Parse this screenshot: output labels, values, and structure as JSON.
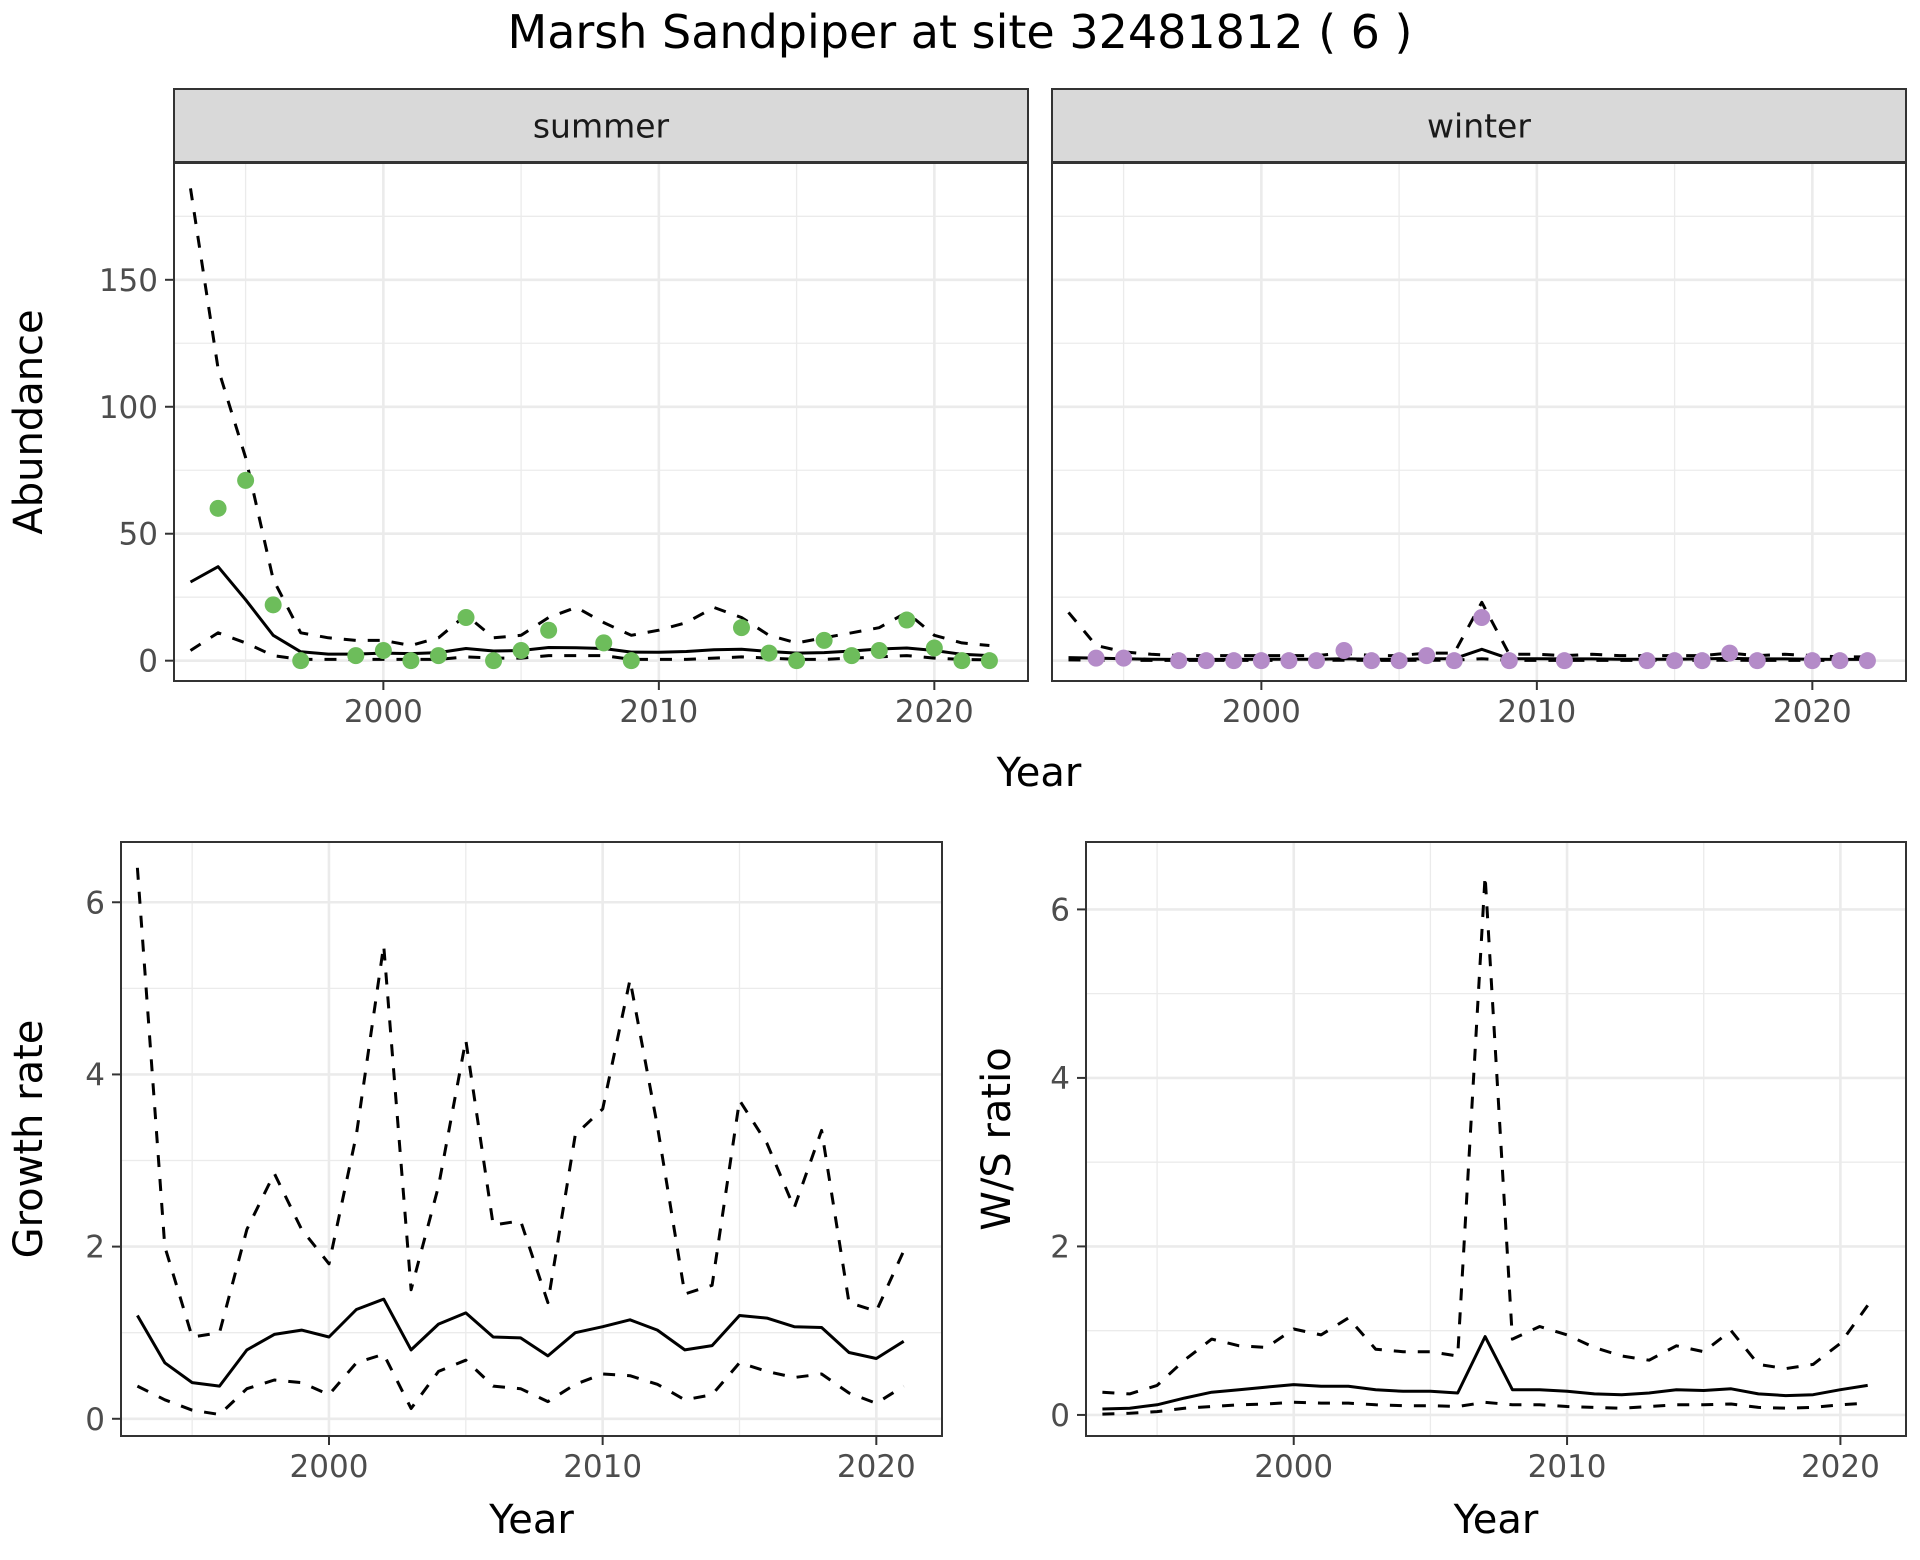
{
  "title": "Marsh Sandpiper at site 32481812 ( 6 )",
  "colors": {
    "summer_points": "#6dbd5b",
    "winter_points": "#b48bc8",
    "lines": "#000000",
    "strip_fill": "#d9d9d9",
    "grid": "#ebebeb"
  },
  "chart_data": [
    {
      "type": "line",
      "panel": "summer",
      "facet_label": "summer",
      "xlabel": "Year",
      "ylabel": "Abundance",
      "xlim": [
        1992.4,
        2023.4
      ],
      "ylim": [
        -8,
        196
      ],
      "xticks": [
        2000,
        2010,
        2020
      ],
      "yticks": [
        0,
        50,
        100,
        150
      ],
      "points": {
        "x": [
          1994,
          1995,
          1996,
          1997,
          1999,
          2000,
          2001,
          2002,
          2003,
          2004,
          2005,
          2006,
          2008,
          2009,
          2013,
          2014,
          2015,
          2016,
          2017,
          2018,
          2019,
          2020,
          2021,
          2022
        ],
        "y": [
          60,
          71,
          22,
          0,
          2,
          4,
          0,
          2,
          17,
          0,
          4,
          12,
          7,
          0,
          13,
          3,
          0,
          8,
          2,
          4,
          16,
          5,
          0,
          0
        ]
      },
      "series": [
        {
          "style": "solid",
          "x": [
            1993,
            1994,
            1995,
            1996,
            1997,
            1998,
            1999,
            2000,
            2001,
            2002,
            2003,
            2004,
            2005,
            2006,
            2007,
            2008,
            2009,
            2010,
            2011,
            2012,
            2013,
            2014,
            2015,
            2016,
            2017,
            2018,
            2019,
            2020,
            2021,
            2022
          ],
          "values": [
            31,
            37,
            24,
            10,
            3.5,
            2.6,
            2.6,
            3,
            2.8,
            3.2,
            4.8,
            3.8,
            4,
            5.2,
            5.1,
            4.8,
            3.4,
            3.3,
            3.6,
            4.3,
            4.5,
            3.6,
            3,
            3.2,
            3.8,
            4.6,
            5,
            4,
            2.5,
            2
          ]
        },
        {
          "style": "dashed",
          "x": [
            1993,
            1994,
            1995,
            1996,
            1997,
            1998,
            1999,
            2000,
            2001,
            2002,
            2003,
            2004,
            2005,
            2006,
            2007,
            2008,
            2009,
            2010,
            2011,
            2012,
            2013,
            2014,
            2015,
            2016,
            2017,
            2018,
            2019,
            2020,
            2021,
            2022
          ],
          "values": [
            186,
            115,
            80,
            32,
            11,
            9,
            8,
            8,
            6,
            9,
            18,
            9,
            10,
            17,
            21,
            15,
            10,
            12,
            15,
            21,
            17,
            10,
            7,
            9,
            11,
            13,
            19,
            10,
            7,
            6
          ]
        },
        {
          "style": "dashed",
          "x": [
            1993,
            1994,
            1995,
            1996,
            1997,
            1998,
            1999,
            2000,
            2001,
            2002,
            2003,
            2004,
            2005,
            2006,
            2007,
            2008,
            2009,
            2010,
            2011,
            2012,
            2013,
            2014,
            2015,
            2016,
            2017,
            2018,
            2019,
            2020,
            2021,
            2022
          ],
          "values": [
            4,
            11,
            7,
            2,
            0.5,
            0.5,
            0.5,
            0.5,
            0.5,
            0.5,
            1.5,
            1,
            1,
            2,
            2,
            2,
            0.5,
            0.5,
            0.5,
            1,
            1.5,
            1,
            0.5,
            0.5,
            1,
            1.5,
            2,
            1,
            0.5,
            0.3
          ]
        }
      ]
    },
    {
      "type": "line",
      "panel": "winter",
      "facet_label": "winter",
      "xlabel": "Year",
      "ylabel": "",
      "xlim": [
        1992.4,
        2023.4
      ],
      "ylim": [
        -8,
        196
      ],
      "xticks": [
        2000,
        2010,
        2020
      ],
      "yticks": [],
      "points": {
        "x": [
          1994,
          1995,
          1997,
          1998,
          1999,
          2000,
          2001,
          2002,
          2003,
          2004,
          2005,
          2006,
          2007,
          2008,
          2009,
          2011,
          2014,
          2015,
          2016,
          2017,
          2018,
          2020,
          2021,
          2022
        ],
        "y": [
          1,
          1,
          0,
          0,
          0,
          0,
          0,
          0,
          4,
          0,
          0,
          2,
          0,
          17,
          0,
          0,
          0,
          0,
          0,
          3,
          0,
          0,
          0,
          0
        ]
      },
      "series": [
        {
          "style": "solid",
          "x": [
            1993,
            1994,
            1995,
            1996,
            1997,
            1998,
            1999,
            2000,
            2001,
            2002,
            2003,
            2004,
            2005,
            2006,
            2007,
            2008,
            2009,
            2010,
            2011,
            2012,
            2013,
            2014,
            2015,
            2016,
            2017,
            2018,
            2019,
            2020,
            2021,
            2022
          ],
          "values": [
            1.2,
            1,
            0.8,
            0.6,
            0.5,
            0.5,
            0.5,
            0.6,
            0.6,
            0.6,
            0.8,
            0.6,
            0.6,
            0.8,
            0.8,
            4.5,
            0.8,
            0.8,
            0.7,
            0.7,
            0.6,
            0.6,
            0.6,
            0.7,
            0.9,
            0.7,
            0.7,
            0.6,
            0.5,
            0.5
          ]
        },
        {
          "style": "dashed",
          "x": [
            1993,
            1994,
            1995,
            1996,
            1997,
            1998,
            1999,
            2000,
            2001,
            2002,
            2003,
            2004,
            2005,
            2006,
            2007,
            2008,
            2009,
            2010,
            2011,
            2012,
            2013,
            2014,
            2015,
            2016,
            2017,
            2018,
            2019,
            2020,
            2021,
            2022
          ],
          "values": [
            19,
            6,
            3.5,
            2.5,
            2,
            2,
            2,
            2,
            2,
            2,
            3,
            2,
            2,
            3,
            3,
            23,
            2.5,
            2.5,
            2,
            2.5,
            2,
            2,
            2,
            2,
            3,
            2,
            2.5,
            2,
            1.5,
            1.5
          ]
        },
        {
          "style": "dashed",
          "x": [
            1993,
            1994,
            1995,
            1996,
            1997,
            1998,
            1999,
            2000,
            2001,
            2002,
            2003,
            2004,
            2005,
            2006,
            2007,
            2008,
            2009,
            2010,
            2011,
            2012,
            2013,
            2014,
            2015,
            2016,
            2017,
            2018,
            2019,
            2020,
            2021,
            2022
          ],
          "values": [
            0.3,
            0.2,
            0.2,
            0.1,
            0.1,
            0.1,
            0.1,
            0.1,
            0.1,
            0.1,
            0.2,
            0.1,
            0.1,
            0.2,
            0.2,
            0.8,
            0.1,
            0.1,
            0.1,
            0.1,
            0.1,
            0.1,
            0.1,
            0.1,
            0.2,
            0.1,
            0.1,
            0.1,
            0.1,
            0.1
          ]
        }
      ]
    },
    {
      "type": "line",
      "panel": "growth",
      "xlabel": "Year",
      "ylabel": "Growth rate",
      "xlim": [
        1992.4,
        2022.4
      ],
      "ylim": [
        -0.2,
        6.7
      ],
      "xticks": [
        2000,
        2010,
        2020
      ],
      "yticks": [
        0,
        2,
        4,
        6
      ],
      "series": [
        {
          "style": "solid",
          "x": [
            1993,
            1994,
            1995,
            1996,
            1997,
            1998,
            1999,
            2000,
            2001,
            2002,
            2003,
            2004,
            2005,
            2006,
            2007,
            2008,
            2009,
            2010,
            2011,
            2012,
            2013,
            2014,
            2015,
            2016,
            2017,
            2018,
            2019,
            2020,
            2021
          ],
          "values": [
            1.2,
            0.65,
            0.42,
            0.38,
            0.8,
            0.98,
            1.03,
            0.95,
            1.27,
            1.39,
            0.8,
            1.1,
            1.23,
            0.95,
            0.94,
            0.73,
            1.0,
            1.07,
            1.15,
            1.03,
            0.8,
            0.85,
            1.2,
            1.17,
            1.07,
            1.06,
            0.77,
            0.7,
            0.9
          ]
        },
        {
          "style": "dashed",
          "x": [
            1993,
            1994,
            1995,
            1996,
            1997,
            1998,
            1999,
            2000,
            2001,
            2002,
            2003,
            2004,
            2005,
            2006,
            2007,
            2008,
            2009,
            2010,
            2011,
            2012,
            2013,
            2014,
            2015,
            2016,
            2017,
            2018,
            2019,
            2020,
            2021
          ],
          "values": [
            6.4,
            2.0,
            0.95,
            1.0,
            2.2,
            2.85,
            2.2,
            1.8,
            3.3,
            5.5,
            1.5,
            2.7,
            4.4,
            2.25,
            2.3,
            1.35,
            3.3,
            3.6,
            5.1,
            3.4,
            1.45,
            1.55,
            3.7,
            3.2,
            2.45,
            3.35,
            1.35,
            1.25,
            1.95
          ]
        },
        {
          "style": "dashed",
          "x": [
            1993,
            1994,
            1995,
            1996,
            1997,
            1998,
            1999,
            2000,
            2001,
            2002,
            2003,
            2004,
            2005,
            2006,
            2007,
            2008,
            2009,
            2010,
            2011,
            2012,
            2013,
            2014,
            2015,
            2016,
            2017,
            2018,
            2019,
            2020,
            2021
          ],
          "values": [
            0.38,
            0.22,
            0.1,
            0.05,
            0.35,
            0.45,
            0.42,
            0.28,
            0.65,
            0.75,
            0.12,
            0.55,
            0.68,
            0.38,
            0.35,
            0.2,
            0.4,
            0.52,
            0.5,
            0.4,
            0.22,
            0.28,
            0.65,
            0.55,
            0.48,
            0.52,
            0.3,
            0.18,
            0.38
          ]
        }
      ]
    },
    {
      "type": "line",
      "panel": "ratio",
      "xlabel": "Year",
      "ylabel": "W/S ratio",
      "xlim": [
        1992.4,
        2022.4
      ],
      "ylim": [
        -0.25,
        6.8
      ],
      "xticks": [
        2000,
        2010,
        2020
      ],
      "yticks": [
        0,
        2,
        4,
        6
      ],
      "series": [
        {
          "style": "solid",
          "x": [
            1993,
            1994,
            1995,
            1996,
            1997,
            1998,
            1999,
            2000,
            2001,
            2002,
            2003,
            2004,
            2005,
            2006,
            2007,
            2008,
            2009,
            2010,
            2011,
            2012,
            2013,
            2014,
            2015,
            2016,
            2017,
            2018,
            2019,
            2020,
            2021
          ],
          "values": [
            0.07,
            0.08,
            0.12,
            0.2,
            0.27,
            0.3,
            0.33,
            0.36,
            0.34,
            0.34,
            0.3,
            0.28,
            0.28,
            0.26,
            0.93,
            0.3,
            0.3,
            0.28,
            0.25,
            0.24,
            0.26,
            0.3,
            0.29,
            0.31,
            0.25,
            0.23,
            0.24,
            0.3,
            0.35
          ]
        },
        {
          "style": "dashed",
          "x": [
            1993,
            1994,
            1995,
            1996,
            1997,
            1998,
            1999,
            2000,
            2001,
            2002,
            2003,
            2004,
            2005,
            2006,
            2007,
            2008,
            2009,
            2010,
            2011,
            2012,
            2013,
            2014,
            2015,
            2016,
            2017,
            2018,
            2019,
            2020,
            2021
          ],
          "values": [
            0.27,
            0.25,
            0.35,
            0.65,
            0.9,
            0.82,
            0.8,
            1.02,
            0.95,
            1.15,
            0.78,
            0.75,
            0.75,
            0.7,
            6.4,
            0.9,
            1.05,
            0.95,
            0.8,
            0.7,
            0.65,
            0.82,
            0.75,
            1.0,
            0.6,
            0.55,
            0.6,
            0.85,
            1.3
          ]
        },
        {
          "style": "dashed",
          "x": [
            1993,
            1994,
            1995,
            1996,
            1997,
            1998,
            1999,
            2000,
            2001,
            2002,
            2003,
            2004,
            2005,
            2006,
            2007,
            2008,
            2009,
            2010,
            2011,
            2012,
            2013,
            2014,
            2015,
            2016,
            2017,
            2018,
            2019,
            2020,
            2021
          ],
          "values": [
            0.01,
            0.02,
            0.04,
            0.08,
            0.1,
            0.12,
            0.13,
            0.15,
            0.14,
            0.14,
            0.12,
            0.11,
            0.11,
            0.1,
            0.15,
            0.12,
            0.12,
            0.1,
            0.09,
            0.08,
            0.1,
            0.12,
            0.12,
            0.13,
            0.09,
            0.08,
            0.09,
            0.12,
            0.14
          ]
        }
      ]
    }
  ]
}
